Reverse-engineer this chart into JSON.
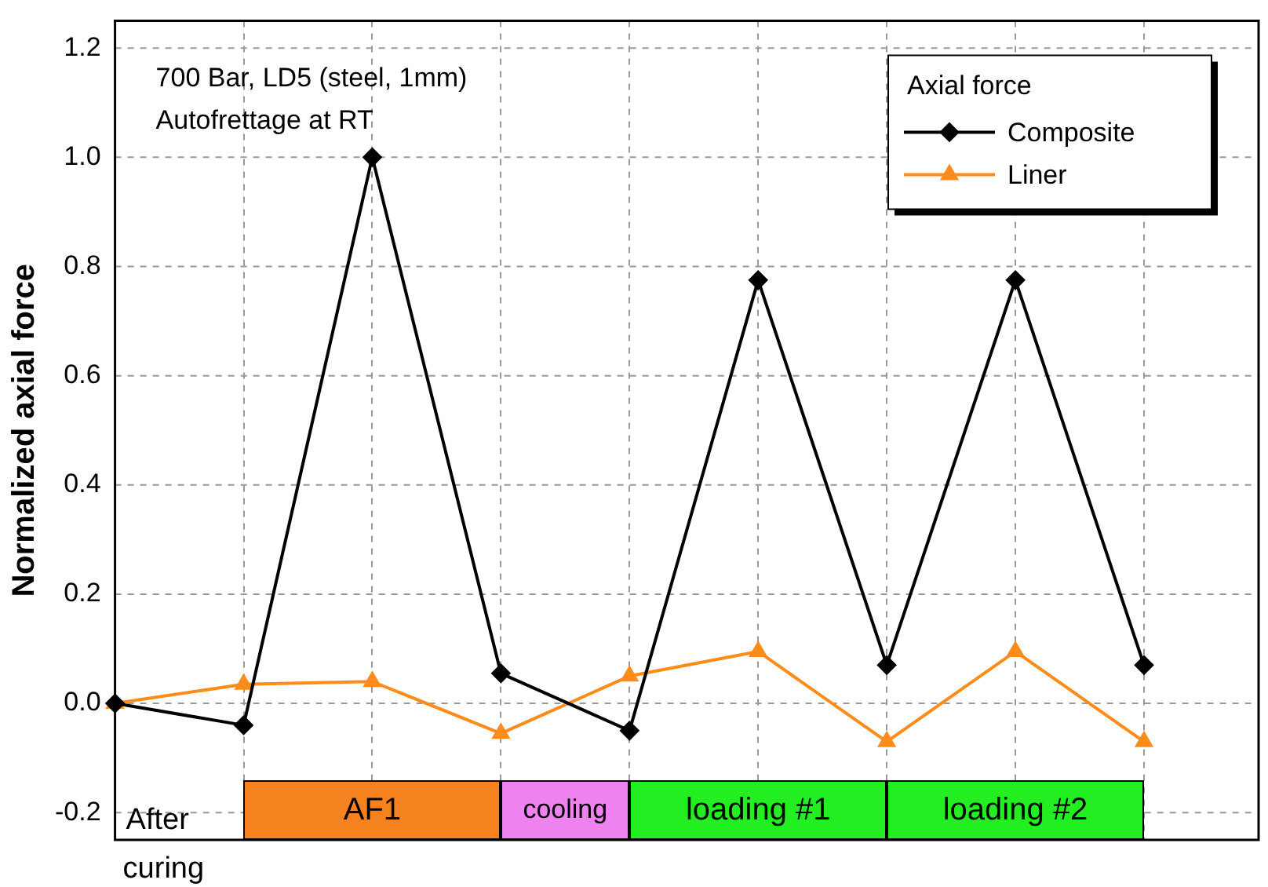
{
  "chart_data": {
    "type": "line",
    "ylabel": "Normalized axial force",
    "legend_title": "Axial force",
    "categories": [
      null,
      null,
      null,
      null,
      null,
      null,
      null,
      null,
      null
    ],
    "series": [
      {
        "name": "Composite",
        "color": "#000000",
        "marker": "diamond",
        "values": [
          0,
          -0.04,
          1.0,
          0.055,
          -0.05,
          0.775,
          0.07,
          0.775,
          0.07
        ]
      },
      {
        "name": "Liner",
        "color": "#ff8c1a",
        "marker": "triangle",
        "values": [
          0,
          0.035,
          0.04,
          -0.055,
          0.05,
          0.095,
          -0.07,
          0.095,
          -0.07
        ]
      }
    ],
    "ylim": [
      -0.25,
      1.25
    ],
    "yticks": [
      {
        "value": -0.2,
        "label": "-0.2"
      },
      {
        "value": 0,
        "label": "0.0"
      },
      {
        "value": 0.2,
        "label": "0.2"
      },
      {
        "value": 0.4,
        "label": "0.4"
      },
      {
        "value": 0.6,
        "label": "0.6"
      },
      {
        "value": 0.8,
        "label": "0.8"
      },
      {
        "value": 1.0,
        "label": "1.0"
      },
      {
        "value": 1.2,
        "label": "1.2"
      }
    ],
    "annotations": [
      "700 Bar, LD5 (steel, 1mm)",
      "Autofrettage at RT",
      "After curing",
      "AF1",
      "cooling",
      "loading #1",
      "loading #2"
    ],
    "grid": true,
    "legend": "top right",
    "tick_labels": "y"
  }
}
